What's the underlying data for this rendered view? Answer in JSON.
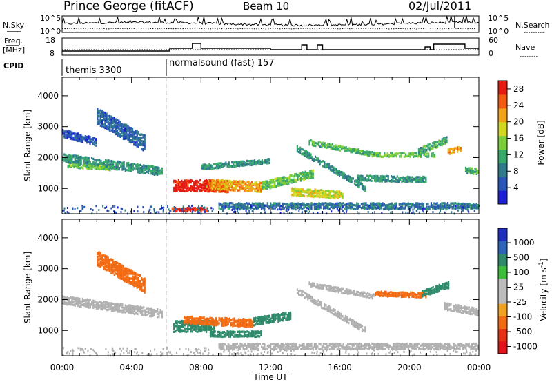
{
  "header": {
    "station": "Prince George (fitACF)",
    "beam": "Beam 10",
    "date": "02/Jul/2011"
  },
  "left_labels": {
    "nsky": "N.Sky",
    "freq": "Freq.",
    "freq_unit": "[MHz]",
    "cpid": "CPID"
  },
  "right_labels": {
    "nsearch": "N.Search",
    "nave": "Nave"
  },
  "top_axes": {
    "noise_ticks": [
      "10^5",
      "10^0"
    ],
    "noise_right_ticks": [
      "10^5",
      "10^0"
    ],
    "freq_ticks": [
      "18",
      "8"
    ],
    "nave_ticks": [
      "60",
      "0"
    ]
  },
  "cpid": [
    {
      "label": "themis 3300",
      "start_hour": 0
    },
    {
      "label": "normalsound (fast) 157",
      "start_hour": 6
    }
  ],
  "colors": {
    "frame": "#000000",
    "scatter_ground": "#b0b0b0",
    "power_scale": [
      "#1d1fd6",
      "#2a55b8",
      "#2f7a8a",
      "#35a86a",
      "#7ccd3a",
      "#d2d81e",
      "#f0a316",
      "#f25b10",
      "#e51b12"
    ],
    "velocity_scale": [
      "#1e2fbf",
      "#2a63b8",
      "#2e8a6a",
      "#3bbf3a",
      "#bcbcbc",
      "#bcbcbc",
      "#f2a022",
      "#f26a12",
      "#e53016",
      "#e2141a"
    ]
  },
  "chart_data": [
    {
      "type": "line",
      "name": "noise",
      "x_range_hours": [
        0,
        24
      ],
      "y_ticks": [
        "10^0",
        "10^5"
      ],
      "series": [
        {
          "name": "N.Sky",
          "style": "solid"
        },
        {
          "name": "N.Search",
          "style": "dotted"
        }
      ]
    },
    {
      "type": "line",
      "name": "frequency_nave",
      "x_range_hours": [
        0,
        24
      ],
      "y_left_ticks": [
        8,
        18
      ],
      "y_right_ticks": [
        0,
        60
      ],
      "series": [
        {
          "name": "Freq.",
          "style": "solid",
          "x": [
            0,
            6.2,
            6.2,
            7.5,
            7.5,
            8.0,
            8.0,
            12.0,
            12.0,
            13.8,
            13.8,
            14.1,
            14.1,
            14.7,
            14.7,
            15.0,
            15.0,
            20.9,
            20.9,
            21.2,
            21.2,
            21.4,
            21.4,
            23.2,
            23.2,
            24.0
          ],
          "y": [
            11,
            11,
            13,
            13,
            16.5,
            16.5,
            13,
            13,
            12,
            12,
            15.5,
            15.5,
            12,
            12,
            15.5,
            15.5,
            12,
            12,
            14,
            14,
            12,
            12,
            16,
            16,
            13,
            13
          ]
        },
        {
          "name": "Nave",
          "style": "dotted",
          "y_constant": 12
        }
      ]
    },
    {
      "type": "heatmap",
      "name": "power",
      "title": "Power [dB]",
      "xlabel": "Time UT",
      "ylabel": "Slant Range [km]",
      "x_ticks": [
        "00:00",
        "04:00",
        "08:00",
        "12:00",
        "16:00",
        "20:00",
        "00:00"
      ],
      "x_range_hours": [
        0,
        24
      ],
      "y_ticks": [
        1000,
        2000,
        3000,
        4000
      ],
      "y_range_km": [
        180,
        4600
      ],
      "colorbar_ticks": [
        4,
        8,
        12,
        16,
        20,
        24,
        28
      ],
      "colorbar_range": [
        0,
        30
      ],
      "regions": [
        {
          "t": [
            0.0,
            5.8
          ],
          "r_center": [
            2000,
            1550
          ],
          "width": 280,
          "value": 10
        },
        {
          "t": [
            0.3,
            2.8
          ],
          "r_center": [
            1750,
            1650
          ],
          "width": 120,
          "value": 14
        },
        {
          "t": [
            2.0,
            4.8
          ],
          "r_center": [
            3350,
            2450
          ],
          "width": 520,
          "value": 6
        },
        {
          "t": [
            0.0,
            2.0
          ],
          "r_center": [
            2800,
            2500
          ],
          "width": 250,
          "value": 5
        },
        {
          "t": [
            6.4,
            8.8
          ],
          "r_center": [
            1100,
            1100
          ],
          "width": 380,
          "value": 29
        },
        {
          "t": [
            6.3,
            8.4
          ],
          "r_center": [
            330,
            330
          ],
          "width": 130,
          "value": 28
        },
        {
          "t": [
            8.3,
            9.6
          ],
          "r_center": [
            1100,
            1050
          ],
          "width": 350,
          "value": 26
        },
        {
          "t": [
            8.6,
            11.5
          ],
          "r_center": [
            1150,
            1050
          ],
          "width": 320,
          "value": 22
        },
        {
          "t": [
            8.0,
            12.0
          ],
          "r_center": [
            1700,
            1900
          ],
          "width": 160,
          "value": 10
        },
        {
          "t": [
            11.5,
            14.5
          ],
          "r_center": [
            1100,
            1500
          ],
          "width": 280,
          "value": 14
        },
        {
          "t": [
            13.2,
            16.2
          ],
          "r_center": [
            900,
            800
          ],
          "width": 250,
          "value": 18
        },
        {
          "t": [
            13.5,
            17.5
          ],
          "r_center": [
            2300,
            1000
          ],
          "width": 200,
          "value": 10
        },
        {
          "t": [
            14.2,
            18.0
          ],
          "r_center": [
            2500,
            2100
          ],
          "width": 160,
          "value": 12
        },
        {
          "t": [
            17.0,
            21.0
          ],
          "r_center": [
            1350,
            1300
          ],
          "width": 200,
          "value": 10
        },
        {
          "t": [
            18.0,
            21.5
          ],
          "r_center": [
            2100,
            2100
          ],
          "width": 140,
          "value": 14
        },
        {
          "t": [
            20.5,
            22.2
          ],
          "r_center": [
            2200,
            2600
          ],
          "width": 220,
          "value": 12
        },
        {
          "t": [
            22.2,
            23.0
          ],
          "r_center": [
            2200,
            2300
          ],
          "width": 180,
          "value": 22
        },
        {
          "t": [
            23.2,
            24.0
          ],
          "r_center": [
            1600,
            1550
          ],
          "width": 200,
          "value": 12
        },
        {
          "t": [
            9.0,
            24.0
          ],
          "r_center": [
            450,
            450
          ],
          "width": 200,
          "value": 8
        }
      ]
    },
    {
      "type": "heatmap",
      "name": "velocity",
      "title": "Velocity [m s^-1]",
      "xlabel": "Time UT",
      "ylabel": "Slant Range [km]",
      "x_ticks": [
        "00:00",
        "04:00",
        "08:00",
        "12:00",
        "16:00",
        "20:00",
        "00:00"
      ],
      "x_range_hours": [
        0,
        24
      ],
      "y_ticks": [
        1000,
        2000,
        3000,
        4000
      ],
      "y_range_km": [
        180,
        4600
      ],
      "colorbar_ticks": [
        1000,
        500,
        100,
        25,
        -25,
        -100,
        -500,
        -1000
      ],
      "regions": [
        {
          "t": [
            0.0,
            5.8
          ],
          "r_center": [
            2000,
            1550
          ],
          "width": 280,
          "value": 0
        },
        {
          "t": [
            2.0,
            4.8
          ],
          "r_center": [
            3350,
            2450
          ],
          "width": 480,
          "value": -150
        },
        {
          "t": [
            6.4,
            8.8
          ],
          "r_center": [
            1150,
            1150
          ],
          "width": 380,
          "value": 150
        },
        {
          "t": [
            7.0,
            11.0
          ],
          "r_center": [
            1350,
            1250
          ],
          "width": 260,
          "value": -400
        },
        {
          "t": [
            8.5,
            11.5
          ],
          "r_center": [
            900,
            900
          ],
          "width": 200,
          "value": 150
        },
        {
          "t": [
            11.0,
            13.2
          ],
          "r_center": [
            1300,
            1500
          ],
          "width": 260,
          "value": 300
        },
        {
          "t": [
            13.5,
            17.5
          ],
          "r_center": [
            2300,
            1000
          ],
          "width": 200,
          "value": 0
        },
        {
          "t": [
            14.2,
            18.0
          ],
          "r_center": [
            2500,
            2100
          ],
          "width": 160,
          "value": 0
        },
        {
          "t": [
            18.0,
            21.0
          ],
          "r_center": [
            2200,
            2150
          ],
          "width": 160,
          "value": -300
        },
        {
          "t": [
            20.7,
            22.3
          ],
          "r_center": [
            2200,
            2500
          ],
          "width": 220,
          "value": 150
        },
        {
          "t": [
            22.0,
            24.0
          ],
          "r_center": [
            1800,
            1600
          ],
          "width": 240,
          "value": 0
        },
        {
          "t": [
            9.0,
            24.0
          ],
          "r_center": [
            500,
            500
          ],
          "width": 200,
          "value": 0
        }
      ]
    }
  ],
  "colorbar_labels": {
    "power": "Power [dB]",
    "velocity_main": "Velocity  [m s",
    "velocity_exp": "-1",
    "velocity_close": "]"
  },
  "axis": {
    "xlabel": "Time UT",
    "ylabel": "Slant Range [km]"
  }
}
